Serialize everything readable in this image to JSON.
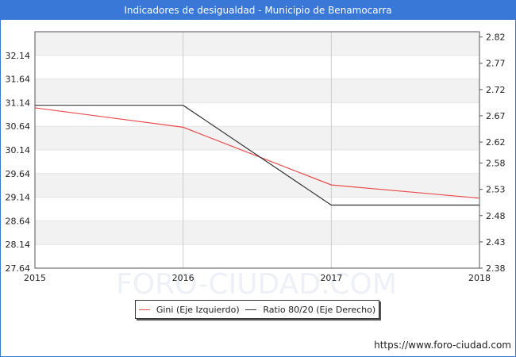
{
  "title": "Indicadores de desigualdad - Municipio de Benamocarra",
  "source_url": "https://www.foro-ciudad.com",
  "watermark": "FORO-CIUDAD.COM",
  "colors": {
    "title_bg": "#3a78d8",
    "gini": "#e84c4c",
    "ratio": "#333333",
    "band": "#f2f2f2",
    "grid": "#cccccc"
  },
  "chart_data": {
    "type": "line",
    "x": [
      2015,
      2016,
      2017,
      2018
    ],
    "x_tick_labels": [
      "2015",
      "2016",
      "2017",
      "2018"
    ],
    "grid": true,
    "legend_position": "bottom",
    "y_left": {
      "ylim": [
        27.64,
        32.64
      ],
      "tick_labels": [
        "27.64",
        "28.14",
        "28.64",
        "29.14",
        "29.64",
        "30.14",
        "30.64",
        "31.14",
        "31.64",
        "32.14"
      ]
    },
    "y_right": {
      "ylim": [
        2.38,
        2.83
      ],
      "tick_labels": [
        "2.38",
        "2.43",
        "2.48",
        "2.53",
        "2.58",
        "2.62",
        "2.67",
        "2.72",
        "2.77",
        "2.82"
      ]
    },
    "series": [
      {
        "name": "Gini (Eje Izquierdo)",
        "axis": "left",
        "values": [
          31.03,
          30.62,
          29.4,
          29.12
        ]
      },
      {
        "name": "Ratio 80/20 (Eje Derecho)",
        "axis": "right",
        "values": [
          2.69,
          2.69,
          2.5,
          2.5
        ]
      }
    ]
  }
}
